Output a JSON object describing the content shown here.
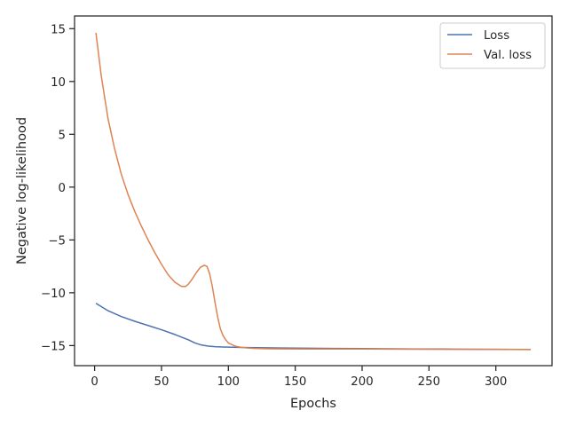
{
  "chart_data": {
    "type": "line",
    "xlabel": "Epochs",
    "ylabel": "Negative log-likelihood",
    "xlim": [
      -15,
      342
    ],
    "ylim": [
      -16.9,
      16.2
    ],
    "xticks": [
      0,
      50,
      100,
      150,
      200,
      250,
      300
    ],
    "yticks": [
      -15,
      -10,
      -5,
      0,
      5,
      10,
      15
    ],
    "xtick_labels": [
      "0",
      "50",
      "100",
      "150",
      "200",
      "250",
      "300"
    ],
    "ytick_labels": [
      "−15",
      "−10",
      "−5",
      "0",
      "5",
      "10",
      "15"
    ],
    "grid": false,
    "legend_position": "top-right",
    "series": [
      {
        "name": "Loss",
        "color": "#4c72b0",
        "x": [
          1,
          10,
          20,
          30,
          40,
          50,
          60,
          70,
          75,
          80,
          85,
          90,
          100,
          110,
          120,
          140,
          160,
          180,
          200,
          220,
          240,
          260,
          280,
          300,
          326
        ],
        "y": [
          -11.0,
          -11.7,
          -12.25,
          -12.7,
          -13.1,
          -13.5,
          -13.95,
          -14.45,
          -14.75,
          -14.95,
          -15.05,
          -15.1,
          -15.15,
          -15.18,
          -15.2,
          -15.23,
          -15.25,
          -15.27,
          -15.28,
          -15.3,
          -15.32,
          -15.33,
          -15.35,
          -15.36,
          -15.38
        ]
      },
      {
        "name": "Val. loss",
        "color": "#dd8452",
        "x": [
          1,
          5,
          10,
          15,
          20,
          25,
          30,
          35,
          40,
          45,
          50,
          55,
          60,
          65,
          68,
          70,
          73,
          76,
          79,
          82,
          84,
          86,
          88,
          90,
          92,
          94,
          96,
          98,
          100,
          105,
          110,
          115,
          120,
          130,
          140,
          160,
          180,
          200,
          220,
          240,
          260,
          280,
          300,
          326
        ],
        "y": [
          14.6,
          10.5,
          6.5,
          3.6,
          1.2,
          -0.7,
          -2.3,
          -3.7,
          -5.0,
          -6.2,
          -7.3,
          -8.3,
          -9.0,
          -9.4,
          -9.4,
          -9.2,
          -8.7,
          -8.1,
          -7.6,
          -7.4,
          -7.5,
          -8.2,
          -9.4,
          -10.9,
          -12.3,
          -13.4,
          -14.05,
          -14.45,
          -14.75,
          -15.05,
          -15.18,
          -15.23,
          -15.27,
          -15.3,
          -15.31,
          -15.32,
          -15.33,
          -15.33,
          -15.34,
          -15.35,
          -15.36,
          -15.36,
          -15.36,
          -15.37
        ]
      }
    ]
  }
}
